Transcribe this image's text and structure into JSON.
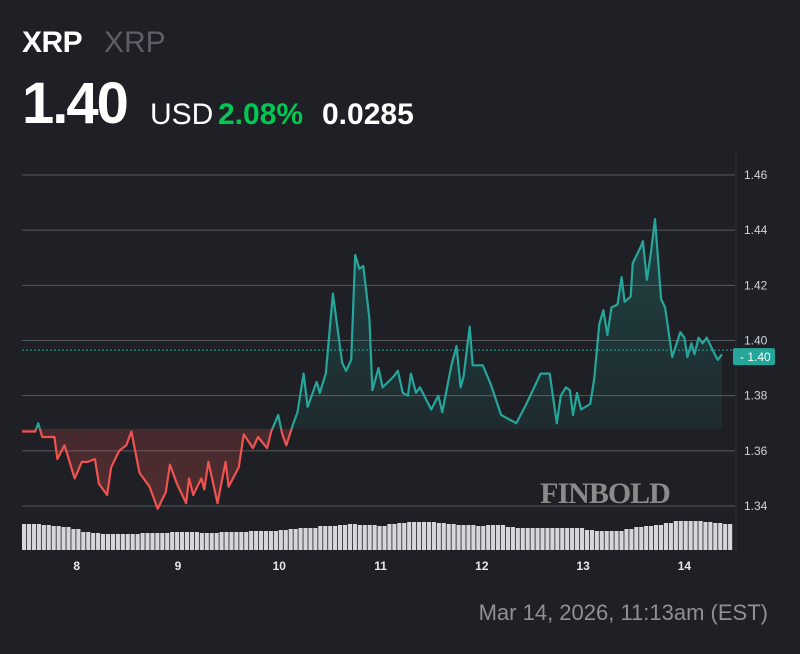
{
  "header": {
    "symbol": "XRP",
    "name": "XRP",
    "price": "1.40",
    "currency": "USD",
    "change_pct": "2.08%",
    "change_abs": "0.0285"
  },
  "timestamp": "Mar 14, 2026, 11:13am (EST)",
  "watermark": "FINBOLD",
  "colors": {
    "background": "#1e2025",
    "up": "#26a69a",
    "down": "#ef5350",
    "positive_text": "#00c853",
    "volume": "#d6d7db"
  },
  "chart_data": {
    "type": "line",
    "title": "",
    "xlabel": "",
    "ylabel": "",
    "x_tick_labels": [
      "8",
      "9",
      "10",
      "11",
      "12",
      "13",
      "14"
    ],
    "x_ticks": [
      8,
      9,
      10,
      11,
      12,
      13,
      14
    ],
    "y_tick_labels": [
      "1.46",
      "1.44",
      "1.42",
      "1.40",
      "1.38",
      "1.36",
      "1.34"
    ],
    "y_ticks": [
      1.46,
      1.44,
      1.42,
      1.4,
      1.38,
      1.36,
      1.34
    ],
    "xlim": [
      7.46,
      14.48
    ],
    "ylim": [
      1.34,
      1.46
    ],
    "grid": true,
    "baseline": 1.368,
    "last_price": 1.3965,
    "last_price_label": "1.40",
    "series": [
      {
        "x": [
          7.46,
          7.59,
          7.62,
          7.66,
          7.78,
          7.81,
          7.88,
          7.98,
          8.05,
          8.11,
          8.18,
          8.22,
          8.3,
          8.34,
          8.42,
          8.49,
          8.54,
          8.62,
          8.72,
          8.8,
          8.88,
          8.92,
          8.99,
          9.08,
          9.11,
          9.15,
          9.23,
          9.26,
          9.3,
          9.39,
          9.47,
          9.5,
          9.6,
          9.65,
          9.74,
          9.79,
          9.88,
          9.92,
          9.99,
          10.03,
          10.07,
          10.14,
          10.18,
          10.24,
          10.28,
          10.37,
          10.4,
          10.46,
          10.53,
          10.62,
          10.66,
          10.71,
          10.75,
          10.79,
          10.83,
          10.89,
          10.92,
          10.98,
          11.02,
          11.13,
          11.17,
          11.22,
          11.27,
          11.3,
          11.35,
          11.39,
          11.5,
          11.57,
          11.61,
          11.7,
          11.75,
          11.79,
          11.82,
          11.88,
          11.91,
          12.01,
          12.09,
          12.19,
          12.29,
          12.34,
          12.44,
          12.53,
          12.58,
          12.67,
          12.74,
          12.78,
          12.83,
          12.87,
          12.9,
          12.94,
          12.98,
          13.07,
          13.11,
          13.16,
          13.2,
          13.24,
          13.28,
          13.34,
          13.38,
          13.41,
          13.47,
          13.49,
          13.57,
          13.59,
          13.63,
          13.67,
          13.71,
          13.77,
          13.81,
          13.88,
          13.96,
          14.0,
          14.03,
          14.07,
          14.1,
          14.14,
          14.18,
          14.22,
          14.3,
          14.33,
          14.37
        ],
        "y": [
          1.367,
          1.367,
          1.37,
          1.365,
          1.365,
          1.357,
          1.362,
          1.35,
          1.356,
          1.356,
          1.357,
          1.348,
          1.344,
          1.354,
          1.36,
          1.362,
          1.367,
          1.352,
          1.347,
          1.339,
          1.345,
          1.355,
          1.348,
          1.341,
          1.35,
          1.344,
          1.35,
          1.346,
          1.356,
          1.341,
          1.356,
          1.347,
          1.354,
          1.366,
          1.361,
          1.365,
          1.361,
          1.367,
          1.373,
          1.366,
          1.362,
          1.37,
          1.374,
          1.388,
          1.376,
          1.385,
          1.381,
          1.388,
          1.417,
          1.392,
          1.389,
          1.393,
          1.431,
          1.426,
          1.427,
          1.408,
          1.382,
          1.39,
          1.383,
          1.387,
          1.389,
          1.381,
          1.38,
          1.388,
          1.381,
          1.383,
          1.375,
          1.38,
          1.374,
          1.391,
          1.398,
          1.383,
          1.387,
          1.405,
          1.391,
          1.391,
          1.384,
          1.373,
          1.371,
          1.37,
          1.377,
          1.384,
          1.388,
          1.388,
          1.37,
          1.38,
          1.383,
          1.382,
          1.373,
          1.381,
          1.375,
          1.377,
          1.386,
          1.406,
          1.411,
          1.402,
          1.412,
          1.413,
          1.423,
          1.414,
          1.416,
          1.428,
          1.434,
          1.436,
          1.422,
          1.432,
          1.444,
          1.415,
          1.412,
          1.394,
          1.403,
          1.401,
          1.394,
          1.399,
          1.395,
          1.401,
          1.399,
          1.401,
          1.395,
          1.393,
          1.395
        ]
      }
    ],
    "volume": [
      26,
      26,
      25,
      24,
      23,
      21,
      18,
      17,
      16,
      16,
      16,
      16,
      17,
      17,
      17,
      18,
      18,
      18,
      17,
      17,
      18,
      18,
      18,
      19,
      19,
      19,
      20,
      21,
      22,
      22,
      24,
      24,
      25,
      26,
      25,
      25,
      24,
      26,
      27,
      28,
      28,
      28,
      27,
      26,
      25,
      25,
      24,
      25,
      25,
      23,
      22,
      22,
      22,
      22,
      22,
      22,
      22,
      20,
      19,
      19,
      19,
      21,
      23,
      24,
      25,
      27,
      29,
      29,
      29,
      28,
      27,
      26
    ]
  }
}
